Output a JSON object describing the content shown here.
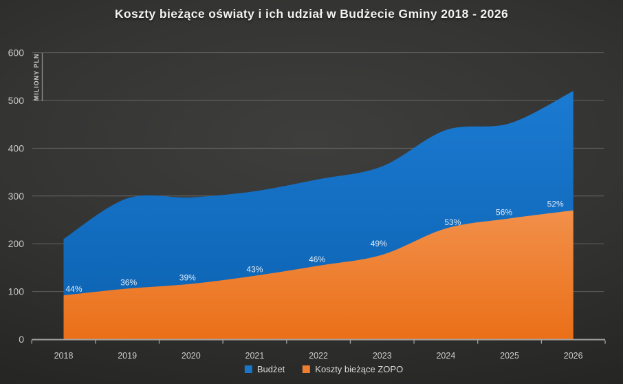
{
  "chart_data": {
    "type": "area",
    "title": "Koszty bieżące oświaty i ich udział w Budżecie Gminy 2018 - 2026",
    "ylabel": "MILIONY PLN",
    "xlabel": "",
    "categories": [
      "2018",
      "2019",
      "2020",
      "2021",
      "2022",
      "2023",
      "2024",
      "2025",
      "2026"
    ],
    "series": [
      {
        "name": "Budżet",
        "color": "#1373C8",
        "values": [
          210,
          295,
          297,
          310,
          335,
          362,
          438,
          452,
          520
        ]
      },
      {
        "name": "Koszty bieżące ZOPO",
        "color": "#ED7D31",
        "values": [
          92,
          106,
          116,
          133,
          154,
          177,
          232,
          253,
          270
        ]
      }
    ],
    "share_of_budget_percent": [
      44,
      36,
      39,
      43,
      46,
      49,
      53,
      56,
      52
    ],
    "share_label_suffix": "%",
    "y_ticks": [
      0,
      100,
      200,
      300,
      400,
      500,
      600
    ],
    "ylim": [
      0,
      600
    ],
    "grid": true,
    "smoothed": true,
    "legend_position": "bottom"
  },
  "colors": {
    "background_center": "#3E3E3D",
    "background_edge": "#1C1C1C",
    "gridline": "rgba(255,255,255,0.24)",
    "axis_line": "#A3A3A3",
    "tick_text": "#C9C9C9",
    "year_text": "#CDCDCD",
    "title_text": "#F2F2F2",
    "percent_text": "#DEE9F4",
    "budget_blue_top": "#1B7BD2",
    "budget_blue_bottom": "#0C61B0",
    "koszty_orange_top": "#F2914C",
    "koszty_orange_bottom": "#EA6E16"
  }
}
